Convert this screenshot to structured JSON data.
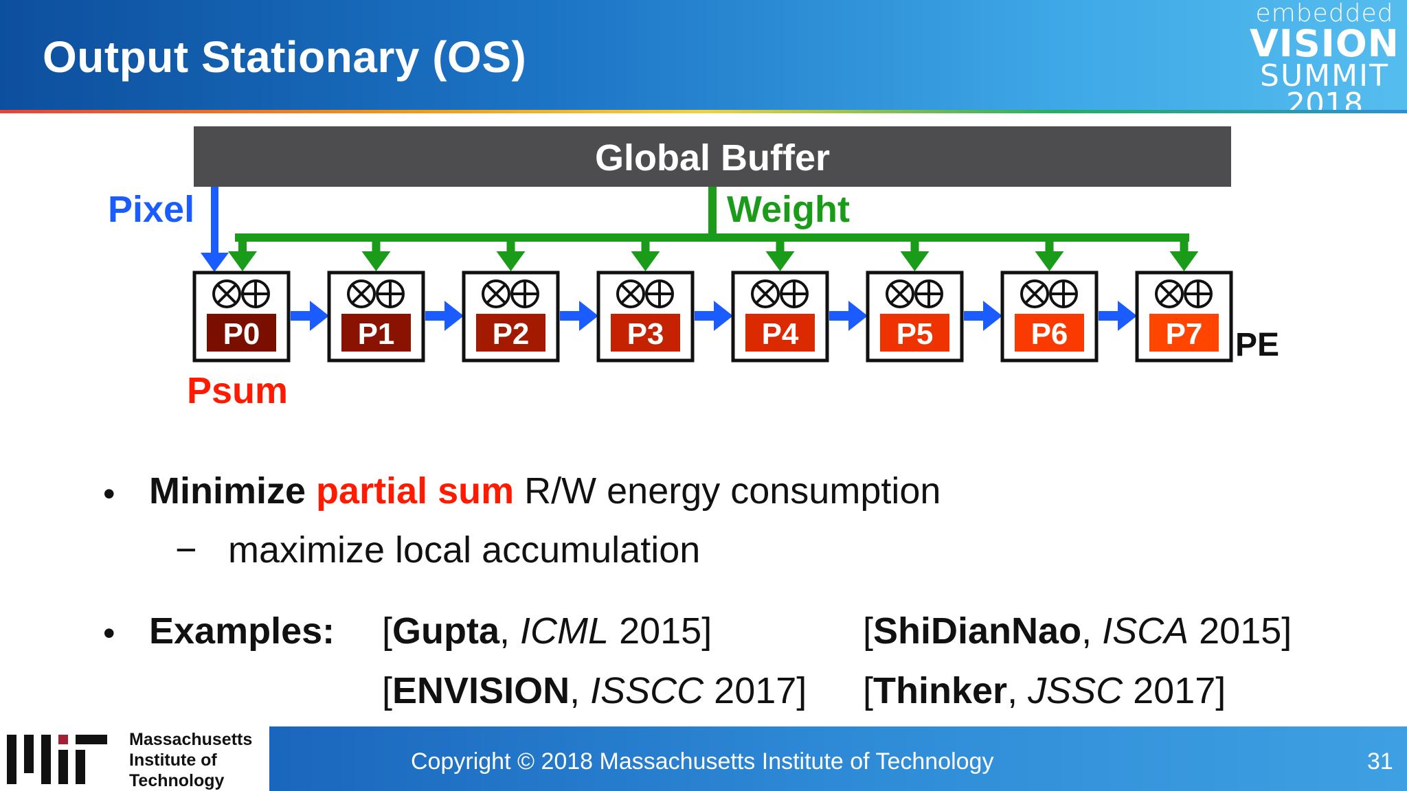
{
  "header": {
    "title": "Output Stationary (OS)"
  },
  "logo": {
    "line1": "embedded",
    "line2": "VISION",
    "line3": "SUMMIT",
    "line4": "2018"
  },
  "diagram": {
    "global_buffer_label": "Global Buffer",
    "pixel_label": "Pixel",
    "weight_label": "Weight",
    "psum_label": "Psum",
    "pe_label": "PE",
    "op_symbols": "⊗⊕",
    "pes": [
      {
        "label": "P0",
        "color": "#7a0f00"
      },
      {
        "label": "P1",
        "color": "#8a1200"
      },
      {
        "label": "P2",
        "color": "#a31a00"
      },
      {
        "label": "P3",
        "color": "#c42200"
      },
      {
        "label": "P4",
        "color": "#dc2a00"
      },
      {
        "label": "P5",
        "color": "#ef3300"
      },
      {
        "label": "P6",
        "color": "#fa3a00"
      },
      {
        "label": "P7",
        "color": "#ff4500"
      }
    ],
    "colors": {
      "pixel": "#1a5cff",
      "weight": "#1a9b1a",
      "psum": "#ff1a00",
      "buffer": "#4d4d4f"
    }
  },
  "bullets": {
    "b1": {
      "part1": "Minimize",
      "part2": "partial sum",
      "part3": "R/W energy consumption"
    },
    "sub1": {
      "dash": "−",
      "text": "maximize local accumulation"
    },
    "b2": {
      "label": "Examples:"
    },
    "refs": [
      {
        "name": "Gupta",
        "venue": "ICML",
        "year": "2015"
      },
      {
        "name": "ShiDianNao",
        "venue": "ISCA",
        "year": "2015"
      },
      {
        "name": "ENVISION",
        "venue": "ISSCC",
        "year": "2017"
      },
      {
        "name": "Thinker",
        "venue": "JSSC",
        "year": "2017"
      }
    ]
  },
  "footer": {
    "institution_line1": "Massachusetts",
    "institution_line2": "Institute of",
    "institution_line3": "Technology",
    "copyright": "Copyright © 2018 Massachusetts Institute of Technology",
    "page_number": "31"
  }
}
